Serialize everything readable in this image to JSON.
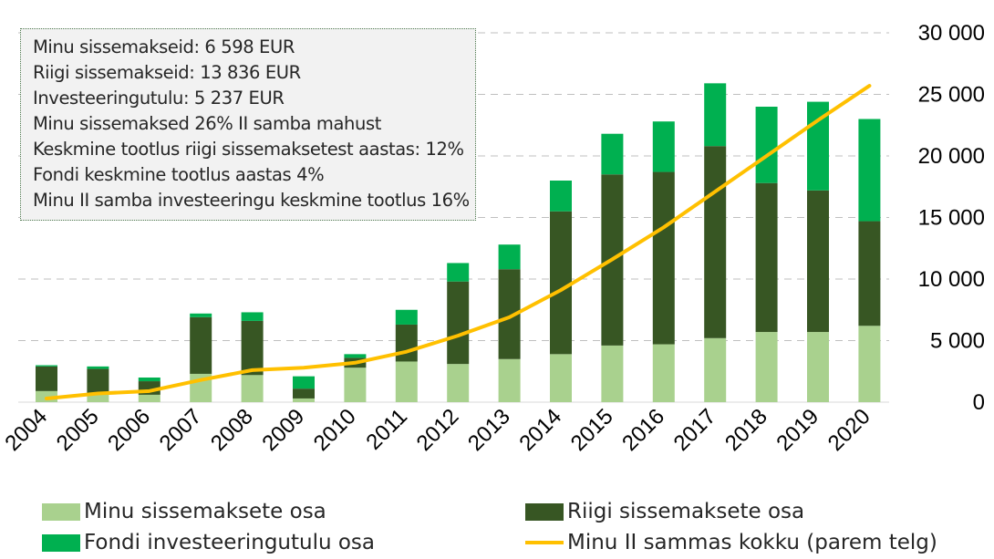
{
  "colors": {
    "my_contrib": "#a9d18e",
    "state_contrib": "#375623",
    "fund_income": "#00b050",
    "total_line": "#ffc000",
    "grid": "#bfbfbf",
    "axis_text": "#000000"
  },
  "info_box": {
    "lines": [
      "Minu sissemakseid: 6 598 EUR",
      "Riigi sissemakseid: 13 836 EUR",
      "Investeeringutulu: 5 237 EUR",
      "Minu sissemaksed 26% II samba mahust",
      "Keskmine tootlus riigi sissemaksetest aastas: 12%",
      "Fondi keskmine tootlus aastas 4%",
      "Minu II samba investeeringu keskmine tootlus 16%"
    ]
  },
  "legend": {
    "my_contrib": "Minu sissemaksete osa",
    "state_contrib": "Riigi sissemaksete osa",
    "fund_income": "Fondi investeeringutulu osa",
    "total_line": "Minu II sammas kokku (parem telg)"
  },
  "chart_data": {
    "type": "bar",
    "stacked": true,
    "categories": [
      "2004",
      "2005",
      "2006",
      "2007",
      "2008",
      "2009",
      "2010",
      "2011",
      "2012",
      "2013",
      "2014",
      "2015",
      "2016",
      "2017",
      "2018",
      "2019",
      "2020"
    ],
    "ylim": [
      0,
      30000
    ],
    "y_ticks": [
      0,
      5000,
      10000,
      15000,
      20000,
      25000,
      30000
    ],
    "y_tick_labels": [
      "0",
      "5 000",
      "10 000",
      "15 000",
      "20 000",
      "25 000",
      "30 000"
    ],
    "y_axis_position": "right",
    "grid": true,
    "series": [
      {
        "name": "Minu sissemaksete osa",
        "key": "my_contrib",
        "values": [
          900,
          700,
          600,
          2300,
          2200,
          300,
          2800,
          3300,
          3100,
          3500,
          3900,
          4600,
          4700,
          5200,
          5700,
          5700,
          6200
        ]
      },
      {
        "name": "Riigi sissemaksete osa",
        "key": "state_contrib",
        "values": [
          2000,
          2000,
          1100,
          4600,
          4400,
          800,
          800,
          3000,
          6700,
          7300,
          11600,
          13900,
          14000,
          15600,
          12100,
          11500,
          8500
        ]
      },
      {
        "name": "Fondi investeeringutulu osa",
        "key": "fund_income",
        "values": [
          100,
          200,
          300,
          300,
          700,
          1000,
          300,
          1200,
          1500,
          2000,
          2500,
          3300,
          4100,
          5100,
          6200,
          7200,
          8300
        ]
      }
    ],
    "line": {
      "name": "Minu II sammas kokku (parem telg)",
      "key": "total_line",
      "values": [
        300,
        700,
        900,
        1800,
        2600,
        2800,
        3200,
        4100,
        5400,
        6900,
        9100,
        11600,
        14200,
        17100,
        20000,
        22900,
        25700
      ]
    }
  }
}
